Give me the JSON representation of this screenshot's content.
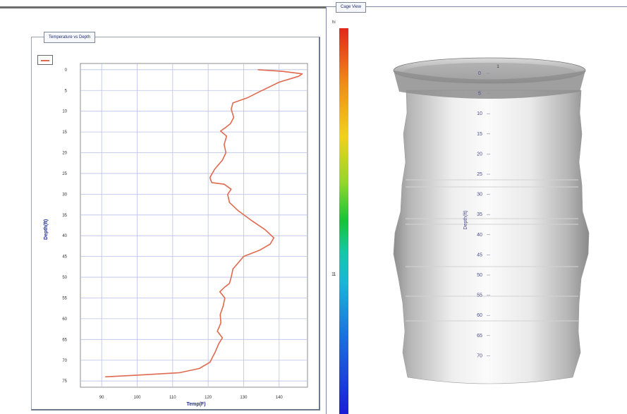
{
  "left_panel": {
    "tab_title": "Temperature vs Depth",
    "legend_label": "----"
  },
  "right_panel": {
    "tab_title": "Cage View",
    "colorbar_top_label": "hi",
    "colorbar_mid_label": "11",
    "depth_axis_label": "Depth(ft)",
    "top_mark": "1",
    "depth_ticks": [
      "0",
      "5",
      "10",
      "15",
      "20",
      "25",
      "30",
      "35",
      "40",
      "45",
      "50",
      "55",
      "60",
      "65",
      "70"
    ]
  },
  "colors": {
    "series_line": "#e06a4f",
    "grid": "#b9c1e6",
    "axis_label": "#1c2e8c",
    "frame": "#7b8aa0"
  },
  "chart_data": {
    "type": "line",
    "title": "Temperature vs Depth",
    "xlabel": "Temp(F)",
    "ylabel": "Depth(ft)",
    "x_ticks": [
      "90",
      "100",
      "110",
      "120",
      "130",
      "140"
    ],
    "y_ticks": [
      "0",
      "5",
      "10",
      "15",
      "20",
      "25",
      "30",
      "35",
      "40",
      "45",
      "50",
      "55",
      "60",
      "65",
      "70",
      "75"
    ],
    "xlim": [
      84,
      148
    ],
    "ylim": [
      -1.5,
      76.5
    ],
    "y_inverted": true,
    "grid": true,
    "legend_position": "top-left",
    "series": [
      {
        "points": [
          [
            134,
            0
          ],
          [
            141,
            0.4
          ],
          [
            146.5,
            1
          ],
          [
            145.5,
            1.6
          ],
          [
            140,
            3
          ],
          [
            134,
            5.5
          ],
          [
            131,
            6.8
          ],
          [
            127,
            8
          ],
          [
            126.5,
            9.5
          ],
          [
            127.2,
            11.5
          ],
          [
            126.3,
            13
          ],
          [
            124.8,
            14
          ],
          [
            123.5,
            14.8
          ],
          [
            125.2,
            16
          ],
          [
            124.5,
            18
          ],
          [
            125,
            20
          ],
          [
            124,
            21.8
          ],
          [
            121.8,
            24
          ],
          [
            120.5,
            26
          ],
          [
            121,
            27.2
          ],
          [
            124.5,
            27.6
          ],
          [
            126.5,
            28.8
          ],
          [
            125.5,
            30
          ],
          [
            126,
            32
          ],
          [
            128.5,
            34
          ],
          [
            132.5,
            36.5
          ],
          [
            136,
            38.5
          ],
          [
            138.5,
            40.5
          ],
          [
            137.5,
            42
          ],
          [
            134.5,
            43.5
          ],
          [
            130,
            45
          ],
          [
            128.5,
            46.5
          ],
          [
            127,
            48
          ],
          [
            126.5,
            50
          ],
          [
            126,
            51.5
          ],
          [
            124.5,
            52.5
          ],
          [
            123.3,
            53.5
          ],
          [
            124.7,
            55
          ],
          [
            124.2,
            57
          ],
          [
            123.4,
            59
          ],
          [
            123.6,
            61
          ],
          [
            122.6,
            63
          ],
          [
            124,
            64.6
          ],
          [
            123,
            66
          ],
          [
            122,
            68
          ],
          [
            120.5,
            70.5
          ],
          [
            117.5,
            72
          ],
          [
            112,
            73
          ],
          [
            100,
            73.6
          ],
          [
            91,
            74
          ]
        ]
      }
    ]
  }
}
